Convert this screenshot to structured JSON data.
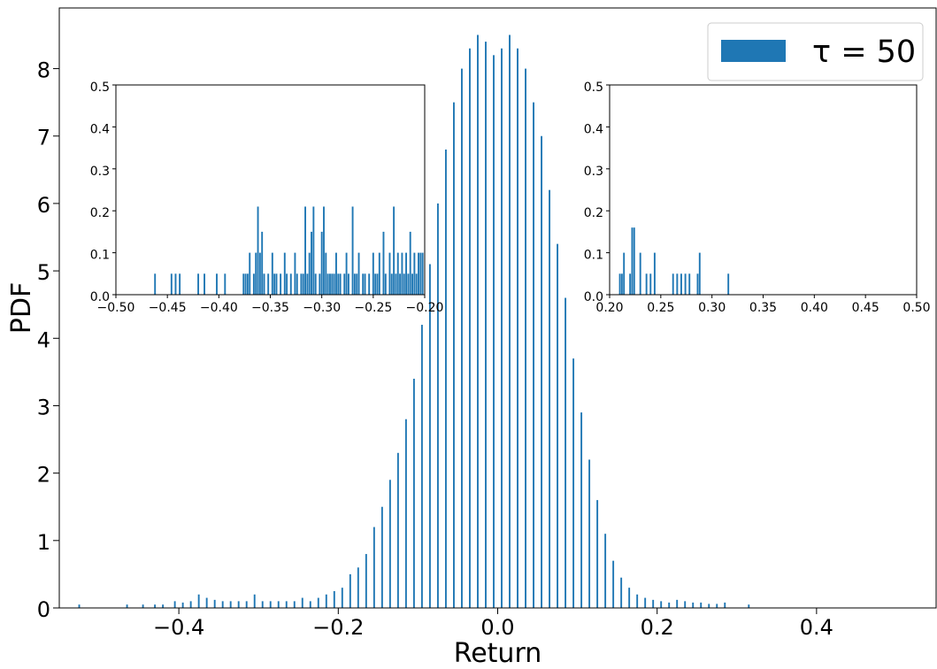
{
  "chart_data": [
    {
      "type": "bar",
      "role": "main",
      "xlabel": "Return",
      "ylabel": "PDF",
      "xlim": [
        -0.55,
        0.55
      ],
      "ylim": [
        0,
        8.9
      ],
      "xticks": [
        -0.4,
        -0.2,
        0.0,
        0.2,
        0.4
      ],
      "xtick_labels": [
        "−0.4",
        "−0.2",
        "0.0",
        "0.2",
        "0.4"
      ],
      "yticks": [
        0,
        1,
        2,
        3,
        4,
        5,
        6,
        7,
        8
      ],
      "ytick_labels": [
        "0",
        "1",
        "2",
        "3",
        "4",
        "5",
        "6",
        "7",
        "8"
      ],
      "grid": false,
      "legend": {
        "placement": "top-right",
        "entries": [
          "τ = 50"
        ]
      },
      "color": "#1f77b4",
      "series": [
        {
          "name": "τ = 50",
          "x": [
            -0.525,
            -0.465,
            -0.445,
            -0.43,
            -0.42,
            -0.405,
            -0.395,
            -0.385,
            -0.375,
            -0.365,
            -0.355,
            -0.345,
            -0.335,
            -0.325,
            -0.315,
            -0.305,
            -0.295,
            -0.285,
            -0.275,
            -0.265,
            -0.255,
            -0.245,
            -0.235,
            -0.225,
            -0.215,
            -0.205,
            -0.195,
            -0.185,
            -0.175,
            -0.165,
            -0.155,
            -0.145,
            -0.135,
            -0.125,
            -0.115,
            -0.105,
            -0.095,
            -0.085,
            -0.075,
            -0.065,
            -0.055,
            -0.045,
            -0.035,
            -0.025,
            -0.015,
            -0.005,
            0.005,
            0.015,
            0.025,
            0.035,
            0.045,
            0.055,
            0.065,
            0.075,
            0.085,
            0.095,
            0.105,
            0.115,
            0.125,
            0.135,
            0.145,
            0.155,
            0.165,
            0.175,
            0.185,
            0.195,
            0.205,
            0.215,
            0.225,
            0.235,
            0.245,
            0.255,
            0.265,
            0.275,
            0.285,
            0.315
          ],
          "y": [
            0.05,
            0.05,
            0.05,
            0.05,
            0.05,
            0.1,
            0.08,
            0.1,
            0.2,
            0.15,
            0.12,
            0.1,
            0.1,
            0.1,
            0.1,
            0.2,
            0.1,
            0.1,
            0.1,
            0.1,
            0.1,
            0.15,
            0.1,
            0.15,
            0.2,
            0.25,
            0.3,
            0.5,
            0.6,
            0.8,
            1.2,
            1.5,
            1.9,
            2.3,
            2.8,
            3.4,
            4.2,
            5.1,
            6.0,
            6.8,
            7.5,
            8.0,
            8.3,
            8.5,
            8.4,
            8.2,
            8.3,
            8.5,
            8.3,
            8.0,
            7.5,
            7.0,
            6.2,
            5.4,
            4.6,
            3.7,
            2.9,
            2.2,
            1.6,
            1.1,
            0.7,
            0.45,
            0.3,
            0.2,
            0.15,
            0.12,
            0.1,
            0.08,
            0.12,
            0.1,
            0.08,
            0.08,
            0.06,
            0.06,
            0.08,
            0.05
          ]
        }
      ]
    },
    {
      "type": "bar",
      "role": "inset-left",
      "xlim": [
        -0.5,
        -0.2
      ],
      "ylim": [
        0,
        0.5
      ],
      "xticks": [
        -0.5,
        -0.45,
        -0.4,
        -0.35,
        -0.3,
        -0.25,
        -0.2
      ],
      "xtick_labels": [
        "−0.50",
        "−0.45",
        "−0.40",
        "−0.35",
        "−0.30",
        "−0.25",
        "−0.20"
      ],
      "yticks": [
        0,
        0.1,
        0.2,
        0.3,
        0.4,
        0.5
      ],
      "ytick_labels": [
        "0.0",
        "0.1",
        "0.2",
        "0.3",
        "0.4",
        "0.5"
      ],
      "color": "#1f77b4",
      "series": [
        {
          "x": [
            -0.462,
            -0.446,
            -0.442,
            -0.438,
            -0.42,
            -0.414,
            -0.402,
            -0.394,
            -0.376,
            -0.374,
            -0.372,
            -0.37,
            -0.366,
            -0.364,
            -0.362,
            -0.36,
            -0.358,
            -0.356,
            -0.352,
            -0.348,
            -0.346,
            -0.344,
            -0.34,
            -0.336,
            -0.334,
            -0.33,
            -0.326,
            -0.324,
            -0.32,
            -0.318,
            -0.316,
            -0.314,
            -0.312,
            -0.31,
            -0.308,
            -0.306,
            -0.302,
            -0.3,
            -0.298,
            -0.296,
            -0.294,
            -0.292,
            -0.29,
            -0.288,
            -0.286,
            -0.284,
            -0.282,
            -0.278,
            -0.276,
            -0.274,
            -0.27,
            -0.268,
            -0.266,
            -0.264,
            -0.26,
            -0.258,
            -0.254,
            -0.25,
            -0.248,
            -0.246,
            -0.244,
            -0.24,
            -0.238,
            -0.234,
            -0.232,
            -0.23,
            -0.228,
            -0.226,
            -0.224,
            -0.222,
            -0.22,
            -0.218,
            -0.216,
            -0.214,
            -0.212,
            -0.21,
            -0.208,
            -0.206,
            -0.204,
            -0.202
          ],
          "y": [
            0.05,
            0.05,
            0.05,
            0.05,
            0.05,
            0.05,
            0.05,
            0.05,
            0.05,
            0.05,
            0.05,
            0.1,
            0.05,
            0.1,
            0.21,
            0.1,
            0.15,
            0.05,
            0.05,
            0.1,
            0.05,
            0.05,
            0.05,
            0.1,
            0.05,
            0.05,
            0.1,
            0.05,
            0.05,
            0.05,
            0.21,
            0.05,
            0.1,
            0.15,
            0.21,
            0.05,
            0.05,
            0.15,
            0.21,
            0.1,
            0.05,
            0.05,
            0.05,
            0.05,
            0.1,
            0.05,
            0.05,
            0.05,
            0.1,
            0.05,
            0.21,
            0.05,
            0.05,
            0.1,
            0.05,
            0.05,
            0.05,
            0.1,
            0.05,
            0.05,
            0.1,
            0.15,
            0.05,
            0.1,
            0.05,
            0.21,
            0.05,
            0.1,
            0.05,
            0.1,
            0.05,
            0.1,
            0.05,
            0.15,
            0.05,
            0.1,
            0.05,
            0.1,
            0.1,
            0.1
          ]
        }
      ]
    },
    {
      "type": "bar",
      "role": "inset-right",
      "xlim": [
        0.2,
        0.5
      ],
      "ylim": [
        0,
        0.5
      ],
      "xticks": [
        0.2,
        0.25,
        0.3,
        0.35,
        0.4,
        0.45,
        0.5
      ],
      "xtick_labels": [
        "0.20",
        "0.25",
        "0.30",
        "0.35",
        "0.40",
        "0.45",
        "0.50"
      ],
      "yticks": [
        0,
        0.1,
        0.2,
        0.3,
        0.4,
        0.5
      ],
      "ytick_labels": [
        "0.0",
        "0.1",
        "0.2",
        "0.3",
        "0.4",
        "0.5"
      ],
      "color": "#1f77b4",
      "series": [
        {
          "x": [
            0.21,
            0.212,
            0.214,
            0.22,
            0.222,
            0.224,
            0.23,
            0.236,
            0.24,
            0.244,
            0.262,
            0.266,
            0.27,
            0.274,
            0.278,
            0.286,
            0.288,
            0.316
          ],
          "y": [
            0.05,
            0.05,
            0.1,
            0.05,
            0.16,
            0.16,
            0.1,
            0.05,
            0.05,
            0.1,
            0.05,
            0.05,
            0.05,
            0.05,
            0.05,
            0.05,
            0.1,
            0.05
          ]
        }
      ]
    }
  ]
}
